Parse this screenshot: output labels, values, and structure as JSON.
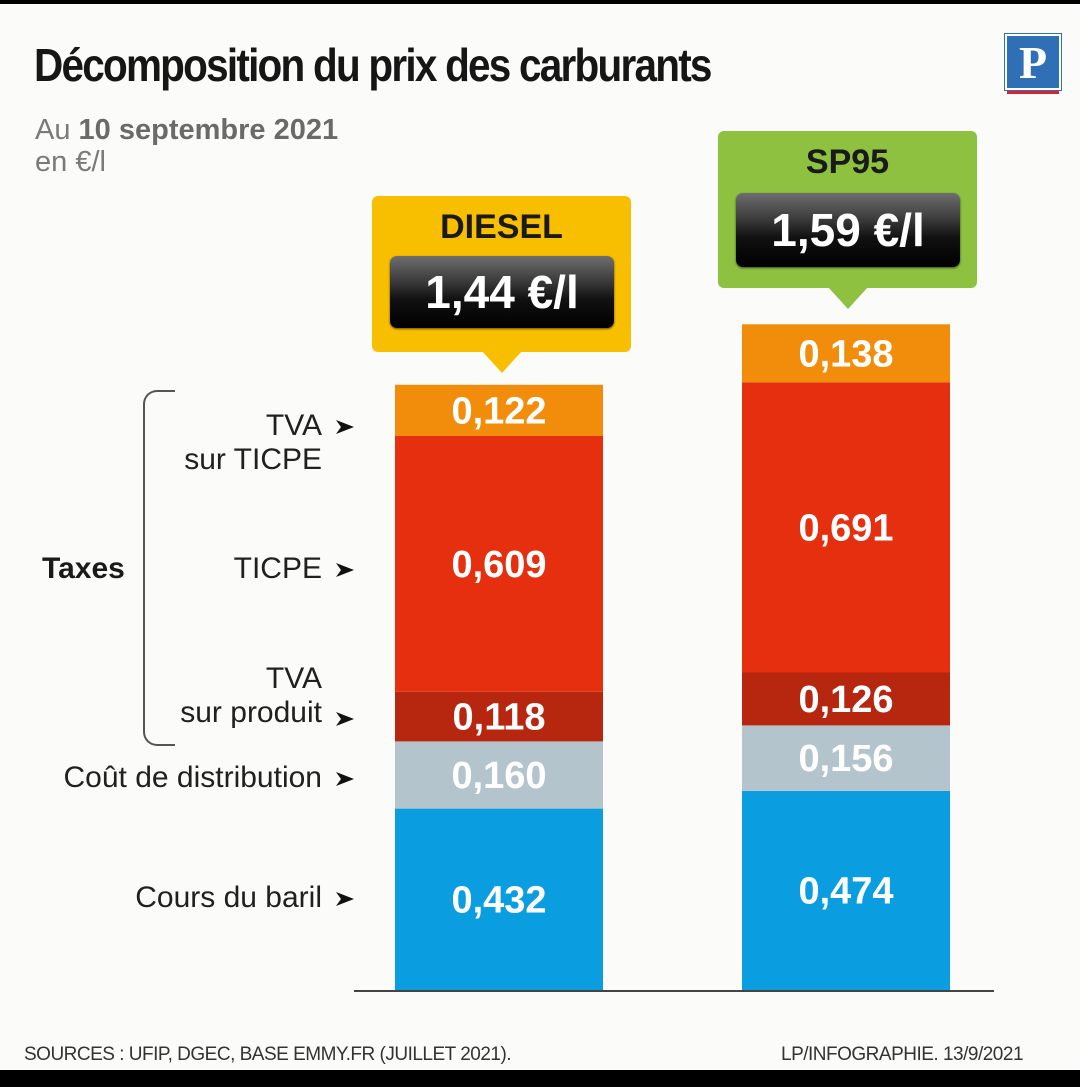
{
  "header": {
    "title": "Décomposition du prix des carburants",
    "subtitle_prefix": "Au ",
    "subtitle_date": "10 septembre 2021",
    "unit": "en €/l",
    "logo": "P"
  },
  "labels": {
    "taxes": "Taxes",
    "tva_ticpe_1": "TVA",
    "tva_ticpe_2": "sur TICPE",
    "ticpe": "TICPE",
    "tva_produit_1": "TVA",
    "tva_produit_2": "sur produit",
    "distribution": "Coût de distribution",
    "baril": "Cours du baril"
  },
  "footer": {
    "sources": "SOURCES : UFIP, DGEC, BASE EMMY.FR (JUILLET 2021).",
    "credit": "LP/INFOGRAPHIE.  13/9/2021"
  },
  "products": {
    "diesel": {
      "name": "DIESEL",
      "price": "1,44 €/l",
      "color": "#f8bf00"
    },
    "sp95": {
      "name": "SP95",
      "price": "1,59 €/l",
      "color": "#8dc13f"
    }
  },
  "chart_data": {
    "type": "bar",
    "stacked": true,
    "title": "Décomposition du prix des carburants",
    "unit": "en €/l",
    "categories": [
      "DIESEL",
      "SP95"
    ],
    "totals": [
      1.44,
      1.59
    ],
    "series": [
      {
        "name": "Cours du baril",
        "values": [
          0.432,
          0.474
        ],
        "labels": [
          "0,432",
          "0,474"
        ],
        "color": "#0a9ee0"
      },
      {
        "name": "Coût de distribution",
        "values": [
          0.16,
          0.156
        ],
        "labels": [
          "0,160",
          "0,156"
        ],
        "color": "#b4c4cd"
      },
      {
        "name": "TVA sur produit",
        "values": [
          0.118,
          0.126
        ],
        "labels": [
          "0,118",
          "0,126"
        ],
        "color": "#b7260f"
      },
      {
        "name": "TICPE",
        "values": [
          0.609,
          0.691
        ],
        "labels": [
          "0,609",
          "0,691"
        ],
        "color": "#e52f0e"
      },
      {
        "name": "TVA sur TICPE",
        "values": [
          0.122,
          0.138
        ],
        "labels": [
          "0,122",
          "0,138"
        ],
        "color": "#f28d0c"
      }
    ]
  }
}
